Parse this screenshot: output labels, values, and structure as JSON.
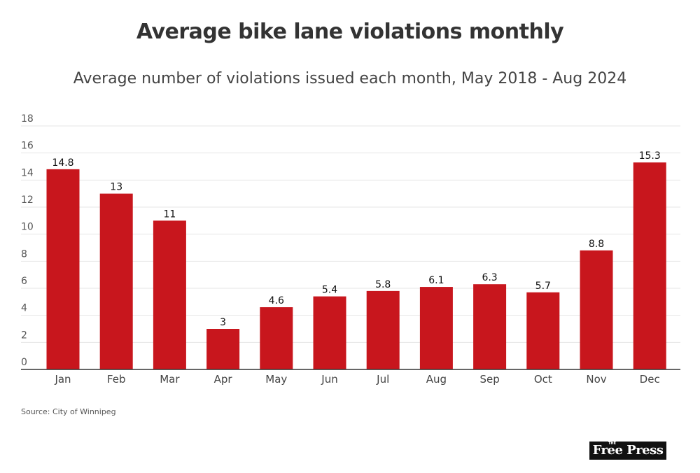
{
  "header": {
    "title": "Average bike lane violations monthly",
    "subtitle": "Average number of violations issued each month, May 2018 - Aug 2024"
  },
  "chart_data": {
    "type": "bar",
    "title": "Average bike lane violations monthly",
    "subtitle": "Average number of violations issued each month, May 2018 - Aug 2024",
    "categories": [
      "Jan",
      "Feb",
      "Mar",
      "Apr",
      "May",
      "Jun",
      "Jul",
      "Aug",
      "Sep",
      "Oct",
      "Nov",
      "Dec"
    ],
    "values": [
      14.8,
      13,
      11,
      3,
      4.6,
      5.4,
      5.8,
      6.1,
      6.3,
      5.7,
      8.8,
      15.3
    ],
    "data_labels": [
      "14.8",
      "13",
      "11",
      "3",
      "4.6",
      "5.4",
      "5.8",
      "6.1",
      "6.3",
      "5.7",
      "8.8",
      "15.3"
    ],
    "xlabel": "",
    "ylabel": "",
    "ylim": [
      0,
      18
    ],
    "yticks": [
      "0",
      "2",
      "4",
      "6",
      "8",
      "10",
      "12",
      "14",
      "16",
      "18"
    ],
    "grid": true,
    "legend": "none",
    "bar_color": "#c8161d"
  },
  "footer": {
    "source": "Source: City of Winnipeg",
    "logo_small": "THE",
    "logo": "Free Press"
  }
}
